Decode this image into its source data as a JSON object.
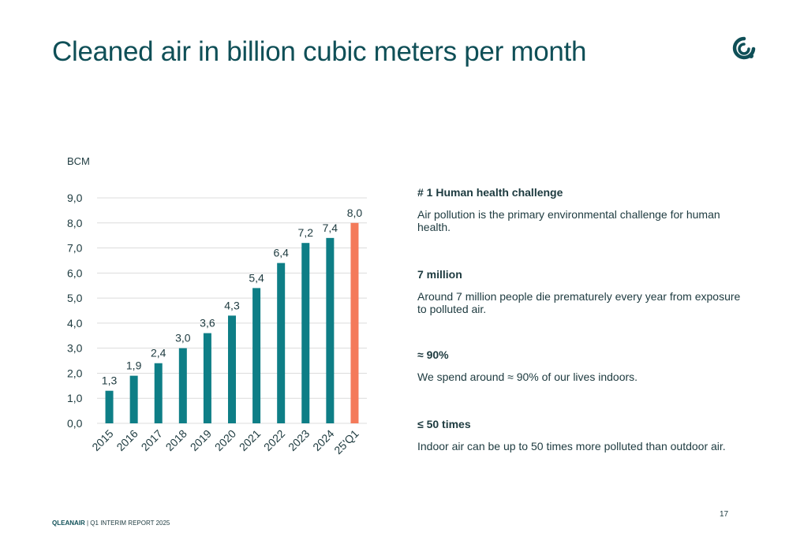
{
  "slide": {
    "title": "Cleaned air in billion cubic meters per month",
    "page_number": "17",
    "footer_brand": "QLEANAIR",
    "footer_text": " | Q1 INTERIM REPORT 2025"
  },
  "colors": {
    "bar": "#0e7e86",
    "highlight_bar": "#f47a5a",
    "grid": "#dcdcdc",
    "title": "#0f4f57",
    "text": "#1d3a3f"
  },
  "chart_data": {
    "type": "bar",
    "ylabel": "BCM",
    "categories": [
      "2015",
      "2016",
      "2017",
      "2018",
      "2019",
      "2020",
      "2021",
      "2022",
      "2023",
      "2024",
      "25'Q1"
    ],
    "values": [
      1.3,
      1.9,
      2.4,
      3.0,
      3.6,
      4.3,
      5.4,
      6.4,
      7.2,
      7.4,
      8.0
    ],
    "value_labels": [
      "1,3",
      "1,9",
      "2,4",
      "3,0",
      "3,6",
      "4,3",
      "5,4",
      "6,4",
      "7,2",
      "7,4",
      "8,0"
    ],
    "highlight_index": 10,
    "ylim": [
      0,
      9
    ],
    "yticks": [
      0,
      1,
      2,
      3,
      4,
      5,
      6,
      7,
      8,
      9
    ],
    "ytick_labels": [
      "0,0",
      "1,0",
      "2,0",
      "3,0",
      "4,0",
      "5,0",
      "6,0",
      "7,0",
      "8,0",
      "9,0"
    ],
    "grid": true
  },
  "info": [
    {
      "heading": "# 1 Human health challenge",
      "text": "Air pollution is the primary environmental challenge for  human health."
    },
    {
      "heading": "7 million",
      "text": "Around 7 million people die prematurely every year from exposure to polluted air."
    },
    {
      "heading": "≈ 90%",
      "text": "We spend around ≈ 90% of our lives indoors."
    },
    {
      "heading": "≤ 50 times",
      "text": "Indoor air can be up to 50 times more polluted than outdoor air."
    }
  ]
}
